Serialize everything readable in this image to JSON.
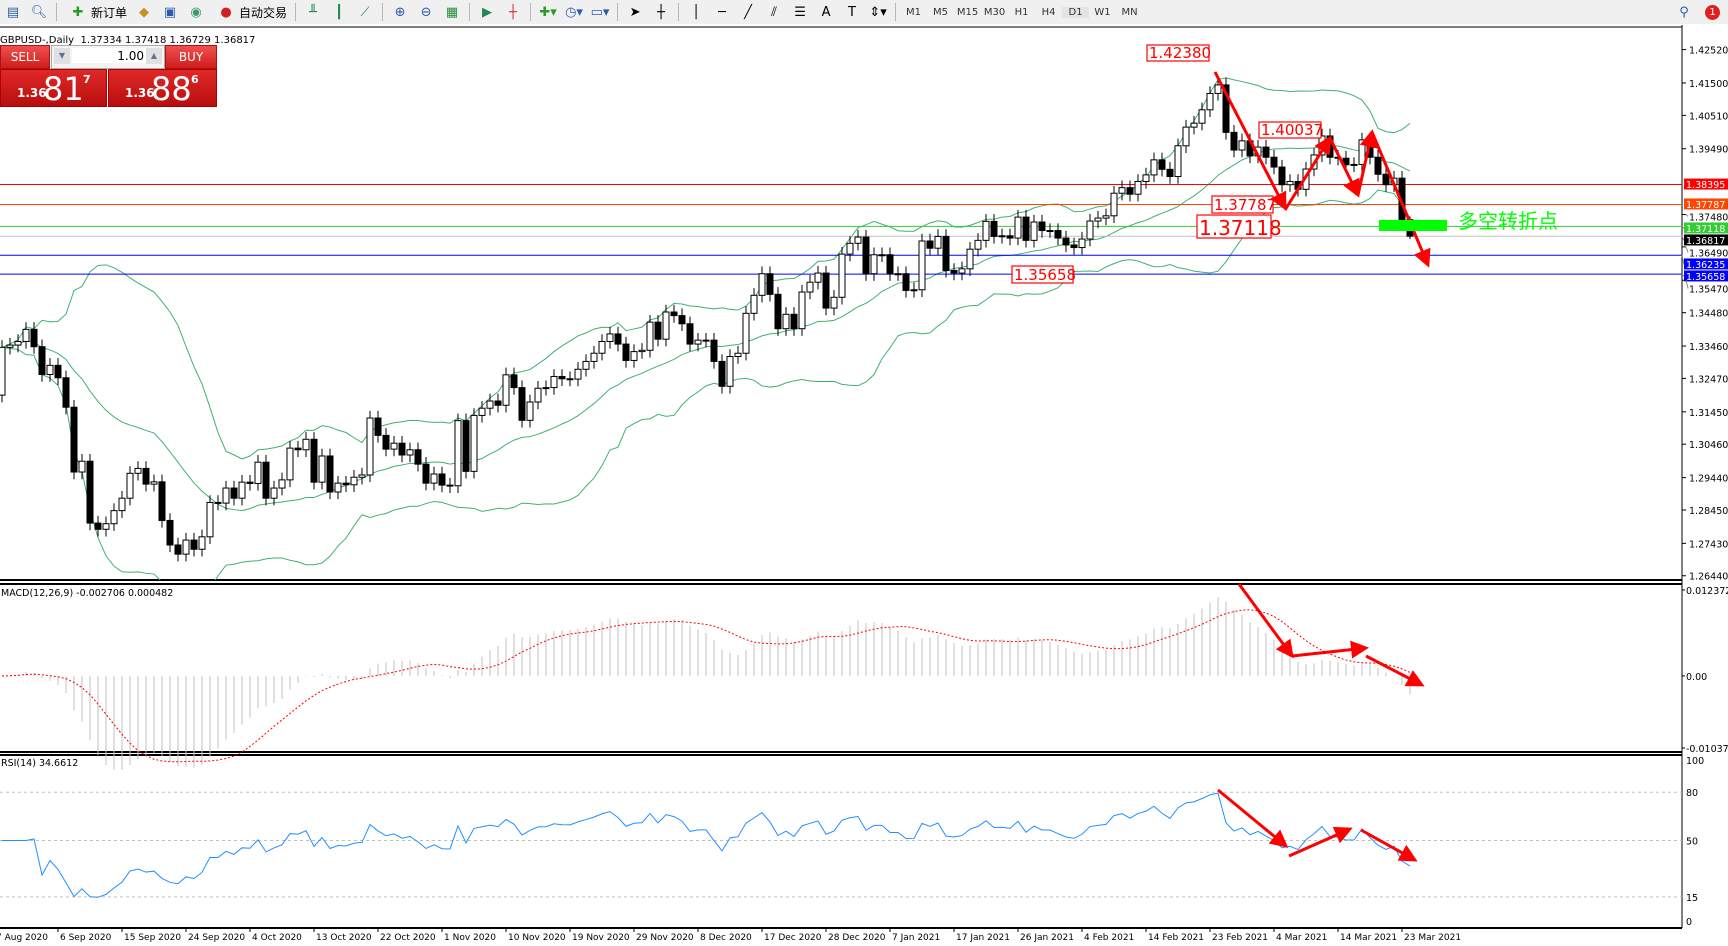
{
  "toolbar": {
    "new_order_label": "新订单",
    "auto_trading_label": "自动交易",
    "timeframes": [
      "M1",
      "M5",
      "M15",
      "M30",
      "H1",
      "H4",
      "D1",
      "W1",
      "MN"
    ],
    "active_timeframe": "D1",
    "notification_count": "1"
  },
  "symbol_title": "GBPUSD-,Daily  1.37334 1.37418 1.36729 1.36817",
  "trade_panel": {
    "sell_label": "SELL",
    "buy_label": "BUY",
    "lot_size": "1.00",
    "sell_price": {
      "prefix": "1.36",
      "big": "81",
      "sup": "7"
    },
    "buy_price": {
      "prefix": "1.36",
      "big": "88",
      "sup": "6"
    },
    "color": "#d81e1e"
  },
  "chart_data": {
    "type": "candlestick",
    "symbol": "GBPUSD-",
    "timeframe": "Daily",
    "last_ohlc": {
      "open": 1.37334,
      "high": 1.37418,
      "low": 1.36729,
      "close": 1.36817
    },
    "closes": [
      1.3342,
      1.3349,
      1.336,
      1.3397,
      1.3344,
      1.3259,
      1.3287,
      1.3249,
      1.3159,
      1.2961,
      1.2994,
      1.2805,
      1.2786,
      1.2803,
      1.2843,
      1.2881,
      1.2957,
      1.2972,
      1.2924,
      1.2931,
      1.2813,
      1.2738,
      1.271,
      1.2753,
      1.2725,
      1.2763,
      1.2868,
      1.2866,
      1.2912,
      1.2881,
      1.293,
      1.2926,
      1.2991,
      1.2881,
      1.2912,
      1.2937,
      1.3034,
      1.3029,
      1.3061,
      1.293,
      1.301,
      1.29,
      1.2927,
      1.2922,
      1.2945,
      1.2952,
      1.3126,
      1.3073,
      1.3031,
      1.3049,
      1.3013,
      1.3029,
      1.2985,
      1.2927,
      1.2955,
      1.2921,
      1.2919,
      1.3118,
      1.2963,
      1.3134,
      1.3156,
      1.3178,
      1.3165,
      1.3258,
      1.3219,
      1.3119,
      1.3175,
      1.3217,
      1.3219,
      1.3253,
      1.3246,
      1.3245,
      1.3275,
      1.3299,
      1.3324,
      1.336,
      1.3383,
      1.3352,
      1.3302,
      1.3329,
      1.3333,
      1.3419,
      1.3367,
      1.345,
      1.3439,
      1.3414,
      1.3352,
      1.3364,
      1.3364,
      1.3299,
      1.3223,
      1.3314,
      1.3324,
      1.3446,
      1.3501,
      1.3567,
      1.3504,
      1.3399,
      1.3443,
      1.3399,
      1.3511,
      1.3541,
      1.3569,
      1.3462,
      1.3495,
      1.3627,
      1.366,
      1.3679,
      1.3567,
      1.3625,
      1.3625,
      1.3567,
      1.3567,
      1.3516,
      1.3518,
      1.3667,
      1.3645,
      1.3681,
      1.3577,
      1.3569,
      1.3582,
      1.3642,
      1.3669,
      1.3727,
      1.3681,
      1.3683,
      1.3676,
      1.374,
      1.3669,
      1.3725,
      1.3699,
      1.3699,
      1.3676,
      1.3655,
      1.3647,
      1.3673,
      1.3728,
      1.3737,
      1.3744,
      1.3813,
      1.383,
      1.381,
      1.3849,
      1.3869,
      1.3915,
      1.3886,
      1.3864,
      1.3958,
      1.4015,
      1.4027,
      1.4068,
      1.4118,
      1.4144,
      1.3999,
      1.3945,
      1.3973,
      1.3927,
      1.3954,
      1.3923,
      1.3893,
      1.3839,
      1.3849,
      1.3825,
      1.3887,
      1.393,
      1.3988,
      1.3923,
      1.392,
      1.39,
      1.3901,
      1.3976,
      1.3923,
      1.3871,
      1.3839,
      1.3859,
      1.3732,
      1.36817
    ],
    "price_axis_ticks": [
      "1.42520",
      "1.41500",
      "1.40510",
      "1.39490",
      "1.37480",
      "1.36490",
      "1.35470",
      "1.34480",
      "1.33460",
      "1.32470",
      "1.31450",
      "1.30460",
      "1.29440",
      "1.28450",
      "1.27430",
      "1.26440"
    ],
    "price_range": [
      1.2631,
      1.4321
    ],
    "date_labels": [
      "7 Aug 2020",
      "6 Sep 2020",
      "15 Sep 2020",
      "24 Sep 2020",
      "4 Oct 2020",
      "13 Oct 2020",
      "22 Oct 2020",
      "1 Nov 2020",
      "10 Nov 2020",
      "19 Nov 2020",
      "29 Nov 2020",
      "8 Dec 2020",
      "17 Dec 2020",
      "28 Dec 2020",
      "7 Jan 2021",
      "17 Jan 2021",
      "26 Jan 2021",
      "4 Feb 2021",
      "14 Feb 2021",
      "23 Feb 2021",
      "4 Mar 2021",
      "14 Mar 2021",
      "23 Mar 2021"
    ],
    "bollinger": {
      "period": 20,
      "deviation": 2,
      "color": "#3cb371"
    },
    "levels": [
      {
        "price": "1.38395",
        "color": "#ff0000"
      },
      {
        "price": "1.37787",
        "color": "#ff4500"
      },
      {
        "price": "1.37118",
        "color": "#32cd32"
      },
      {
        "price": "1.36817",
        "color": "#000000",
        "line_color": "#c0c0c0"
      },
      {
        "price": "1.36235",
        "color": "#0000ff"
      },
      {
        "price": "1.35658",
        "color": "#0000ff"
      }
    ],
    "annotations": [
      {
        "text": "1.42380",
        "bar": 152
      },
      {
        "text": "1.40037",
        "bar": 165
      },
      {
        "text": "1.37787",
        "bar": 160
      },
      {
        "text": "1.37118",
        "bar": 156
      },
      {
        "text": "1.35658",
        "bar": 135
      }
    ],
    "pivot_label": "多空转折点",
    "pivot_color": "#00ff00",
    "arrow_color": "#ff0000"
  },
  "macd": {
    "header": "MACD(12,26,9) -0.002706 0.000482",
    "axis_ticks": [
      "0.012372",
      "0.00",
      "-0.010374"
    ],
    "range": [
      -0.010374,
      0.012372
    ]
  },
  "rsi": {
    "header": "RSI(14) 34.6612",
    "axis_ticks": [
      "100",
      "80",
      "50",
      "15",
      "0"
    ],
    "levels": [
      80,
      50,
      15
    ],
    "color": "#1e90ff"
  }
}
